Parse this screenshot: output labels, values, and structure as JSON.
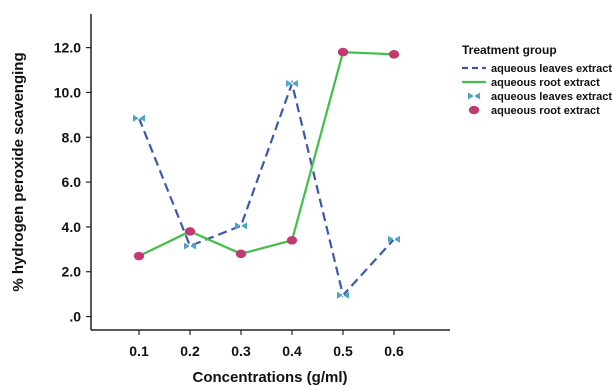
{
  "chart_data": {
    "type": "line",
    "xlabel": "Concentrations (g/ml)",
    "ylabel": "% hydrogen peroxide scavenging",
    "categories": [
      "0.1",
      "0.2",
      "0.3",
      "0.4",
      "0.5",
      "0.6"
    ],
    "y_ticks": [
      ".0",
      "2.0",
      "4.0",
      "6.0",
      "8.0",
      "10.0",
      "12.0"
    ],
    "ylim": [
      -0.6,
      13.5
    ],
    "grid": false,
    "legend_position": "right",
    "legend_title": "Treatment group",
    "series": [
      {
        "name": "aqueous leaves extract",
        "color": "#3a5aa8",
        "line_style": "dashed",
        "marker": "bowtie",
        "marker_label": "aqueous leaves extract",
        "marker_color": "#4aa6c6",
        "values": [
          8.85,
          3.15,
          4.05,
          10.4,
          0.95,
          3.45
        ]
      },
      {
        "name": "aqueous root extract",
        "color": "#3fbf4a",
        "line_style": "solid",
        "marker": "circle",
        "marker_label": "aqueous root extract",
        "marker_color": "#c23a72",
        "values": [
          2.7,
          3.8,
          2.8,
          3.4,
          11.8,
          11.7
        ]
      }
    ]
  }
}
